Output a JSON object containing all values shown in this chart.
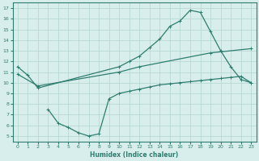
{
  "line1_x": [
    0,
    1,
    2,
    10,
    11,
    12,
    13,
    14,
    15,
    16,
    17,
    18,
    19,
    20,
    21,
    22,
    23
  ],
  "line1_y": [
    11.5,
    10.7,
    9.5,
    11.5,
    12.0,
    12.5,
    13.3,
    14.1,
    15.3,
    15.8,
    16.8,
    16.6,
    14.8,
    13.0,
    11.5,
    10.3,
    10.0
  ],
  "line2_x": [
    0,
    2,
    10,
    12,
    19,
    23
  ],
  "line2_y": [
    10.8,
    9.7,
    11.0,
    11.5,
    12.8,
    13.2
  ],
  "line3_x": [
    3,
    4,
    5,
    6,
    7,
    8,
    9,
    10,
    11,
    12,
    13,
    14,
    15,
    16,
    17,
    18,
    19,
    20,
    21,
    22,
    23
  ],
  "line3_y": [
    7.5,
    6.2,
    5.8,
    5.3,
    5.0,
    5.2,
    8.5,
    9.0,
    9.2,
    9.4,
    9.6,
    9.8,
    9.9,
    10.0,
    10.1,
    10.2,
    10.3,
    10.4,
    10.5,
    10.6,
    10.0
  ],
  "line_color": "#2e7d6e",
  "bg_color": "#d8eeec",
  "grid_color": "#b8d8d4",
  "xlabel": "Humidex (Indice chaleur)",
  "xlim": [
    -0.5,
    23.5
  ],
  "ylim": [
    4.5,
    17.5
  ],
  "xticks": [
    0,
    1,
    2,
    3,
    4,
    5,
    6,
    7,
    8,
    9,
    10,
    11,
    12,
    13,
    14,
    15,
    16,
    17,
    18,
    19,
    20,
    21,
    22,
    23
  ],
  "yticks": [
    5,
    6,
    7,
    8,
    9,
    10,
    11,
    12,
    13,
    14,
    15,
    16,
    17
  ],
  "marker": "+",
  "markersize": 3,
  "linewidth": 0.9
}
